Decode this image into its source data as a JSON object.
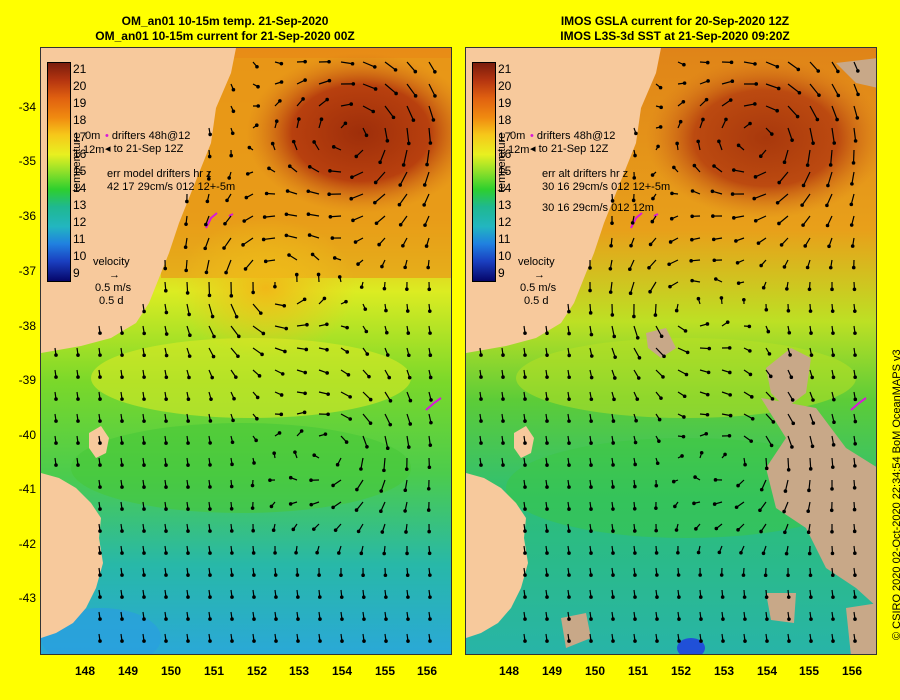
{
  "left_panel": {
    "title_line1": "OM_an01 10-15m temp. 21-Sep-2020",
    "title_line2": "OM_an01 10-15m current for 21-Sep-2020 00Z",
    "drifter_line1": "drifters 48h@12",
    "drifter_line2": "to 21-Sep 12Z",
    "drifter_depth1": "0m",
    "drifter_depth2": "12m",
    "err_line1": "err model drifters hr z",
    "err_line2": "42 17 29cm/s 012 12+-5m",
    "err_line3": "",
    "velocity_label": "velocity",
    "velocity_scale": "0.5 m/s",
    "velocity_time": "0.5 d"
  },
  "right_panel": {
    "title_line1": "IMOS GSLA current for 20-Sep-2020 12Z",
    "title_line2": "IMOS L3S-3d SST at 21-Sep-2020 09:20Z",
    "drifter_line1": "drifters 48h@12",
    "drifter_line2": "to 21-Sep 12Z",
    "drifter_depth1": "0m",
    "drifter_depth2": "12m",
    "err_line1": "err alt drifters hr z",
    "err_line2": "30 16 29cm/s 012 12+-5m",
    "err_line3": "30 16 29cm/s 012 12m",
    "velocity_label": "velocity",
    "velocity_scale": "0.5 m/s",
    "velocity_time": "0.5 d"
  },
  "colorbar": {
    "units": "temperature",
    "ticks": [
      "21",
      "20",
      "19",
      "18",
      "17",
      "16",
      "15",
      "14",
      "13",
      "12",
      "11",
      "10",
      "9"
    ]
  },
  "latitude_ticks": [
    "-34",
    "-35",
    "-36",
    "-37",
    "-38",
    "-39",
    "-40",
    "-41",
    "-42",
    "-43"
  ],
  "longitude_ticks": [
    "148",
    "149",
    "150",
    "151",
    "152",
    "153",
    "154",
    "155",
    "156"
  ],
  "credit": "© CSIRO 2020  02-Oct-2020 22:34:54 BoM OceanMAPS v3",
  "colors": {
    "background": "#ffff00",
    "land": "#f7c99c",
    "cloud_mask": "#c8a888",
    "drifters": "#d81ad8",
    "warm_eddy": "#a83a0c",
    "cold_water": "#28b4c0"
  }
}
